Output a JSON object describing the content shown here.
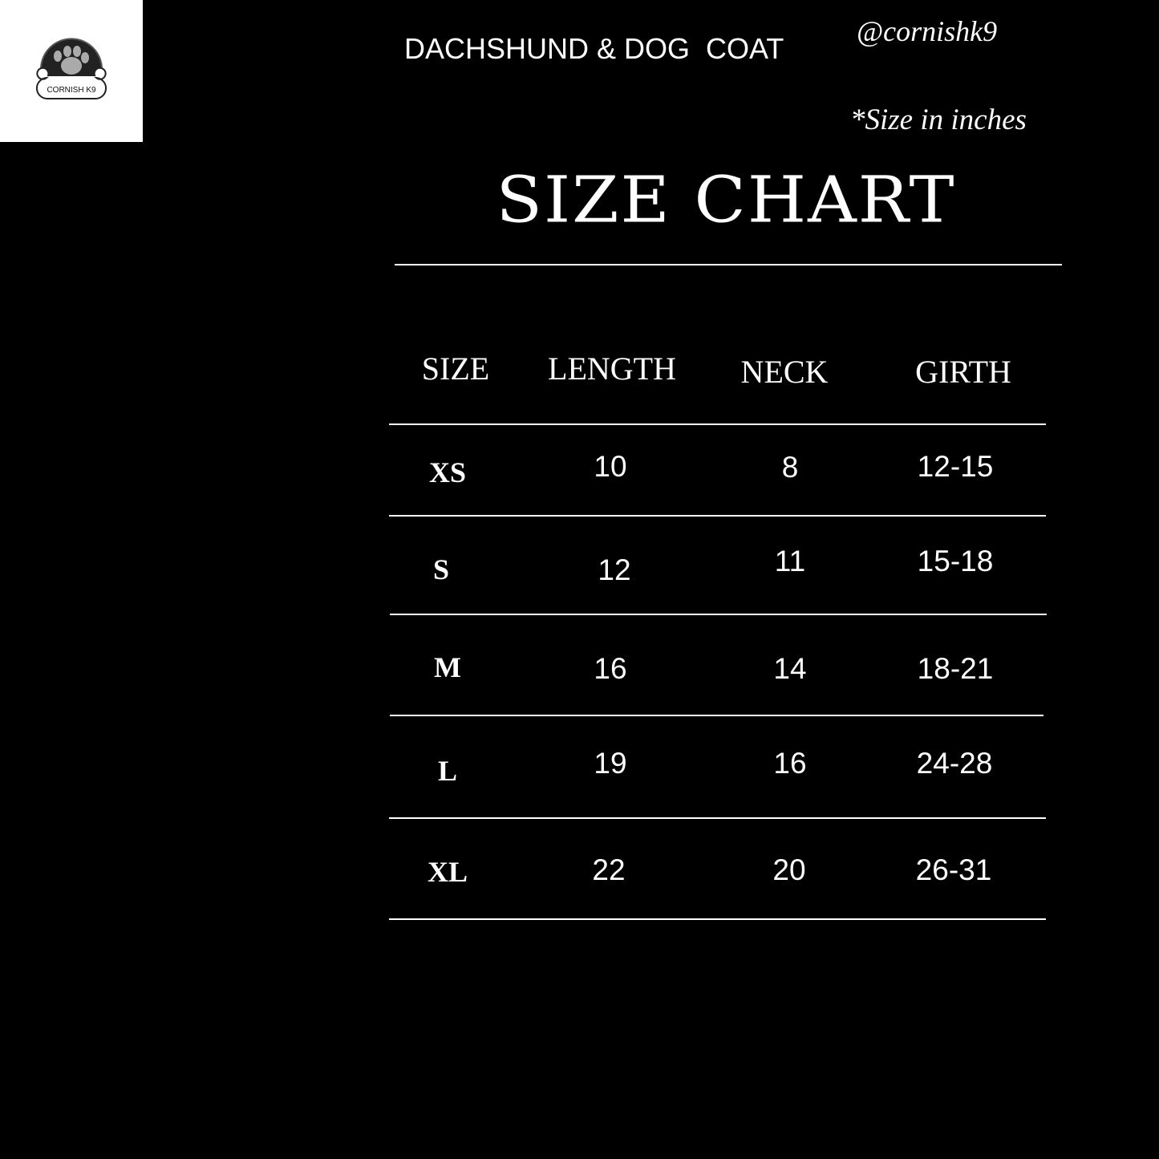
{
  "brand": {
    "logo_text": "CORNISH K9",
    "handle": "@cornishk9"
  },
  "product_title": "DACHSHUND & DOG  COAT",
  "unit_note": "*Size in inches",
  "chart_title": "SIZE CHART",
  "table": {
    "headers": [
      "SIZE",
      "LENGTH",
      "NECK",
      "GIRTH"
    ],
    "rows": [
      {
        "size": "XS",
        "length": "10",
        "neck": "8",
        "girth": "12-15"
      },
      {
        "size": "S",
        "length": "12",
        "neck": "11",
        "girth": "15-18"
      },
      {
        "size": "M",
        "length": "16",
        "neck": "14",
        "girth": "18-21"
      },
      {
        "size": "L",
        "length": "19",
        "neck": "16",
        "girth": "24-28"
      },
      {
        "size": "XL",
        "length": "22",
        "neck": "20",
        "girth": "26-31"
      }
    ]
  }
}
